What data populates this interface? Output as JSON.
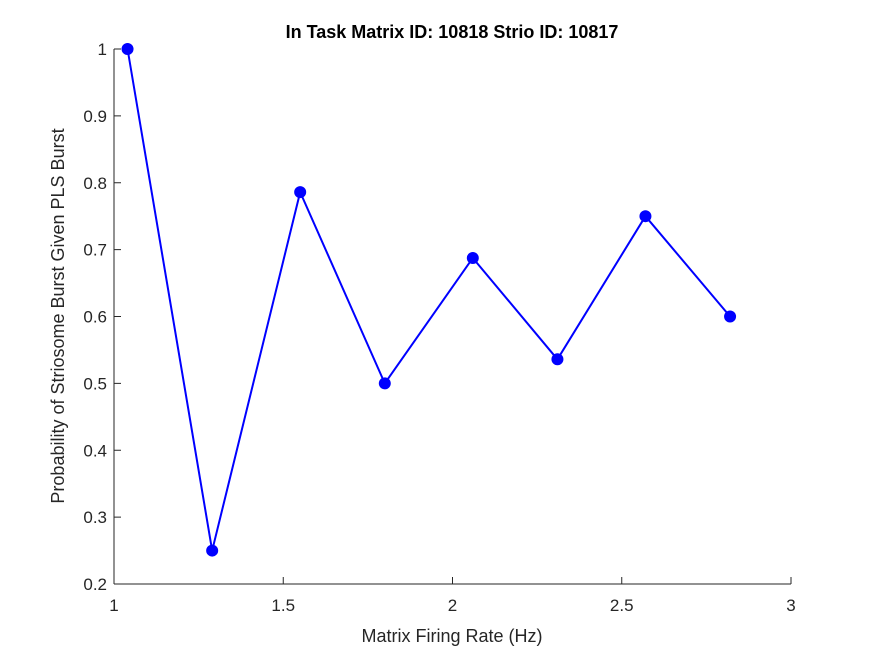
{
  "chart_data": {
    "type": "line",
    "title": "In Task Matrix ID: 10818 Strio ID: 10817",
    "xlabel": "Matrix Firing Rate (Hz)",
    "ylabel": "Probability of Striosome Burst Given PLS Burst",
    "xlim": [
      1,
      3
    ],
    "ylim": [
      0.2,
      1
    ],
    "xticks": [
      1,
      1.5,
      2,
      2.5,
      3
    ],
    "xtick_labels": [
      "1",
      "1.5",
      "2",
      "2.5",
      "3"
    ],
    "yticks": [
      0.2,
      0.3,
      0.4,
      0.5,
      0.6,
      0.7,
      0.8,
      0.9,
      1
    ],
    "ytick_labels": [
      "0.2",
      "0.3",
      "0.4",
      "0.5",
      "0.6",
      "0.7",
      "0.8",
      "0.9",
      "1"
    ],
    "grid": false,
    "series": [
      {
        "color": "#0000ff",
        "marker": "circle",
        "x": [
          1.04,
          1.29,
          1.55,
          1.8,
          2.06,
          2.31,
          2.57,
          2.82
        ],
        "y": [
          1.0,
          0.25,
          0.786,
          0.5,
          0.6875,
          0.536,
          0.75,
          0.6
        ]
      }
    ]
  }
}
